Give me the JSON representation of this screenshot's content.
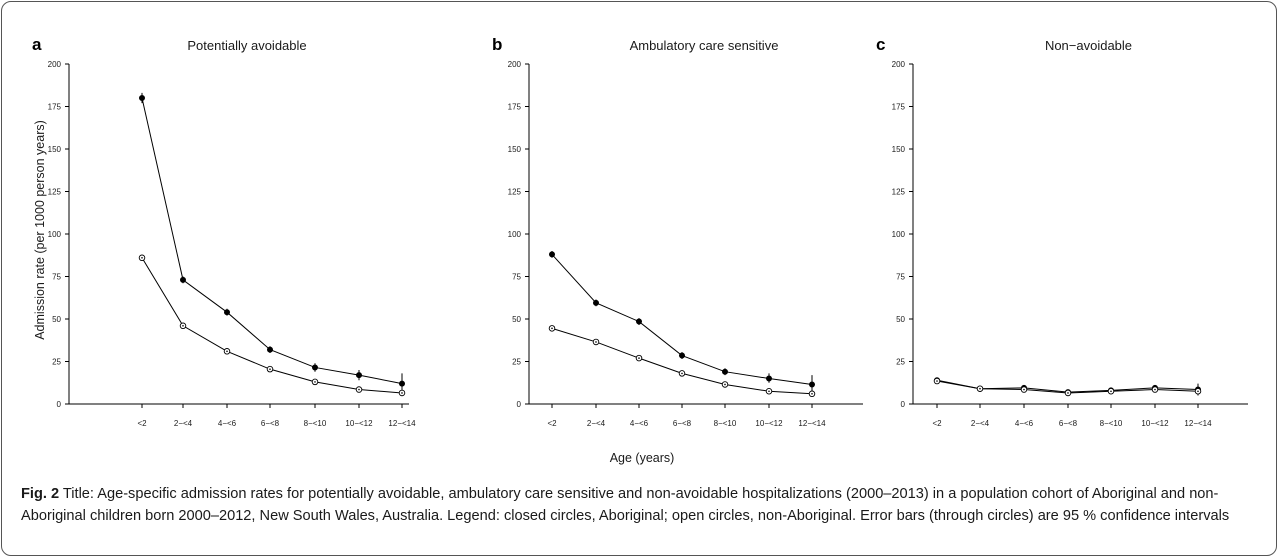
{
  "figure": {
    "xlabel": "Age (years)",
    "ylabel": "Admission rate (per 1000 person years)",
    "caption_lead": "Fig. 2",
    "caption_text": " Title: Age-specific admission rates for potentially avoidable, ambulatory care sensitive and non-avoidable hospitalizations (2000–2013) in a population cohort of Aboriginal and non-Aboriginal children born 2000–2012, New South Wales, Australia. Legend: closed circles, Aboriginal; open circles, non-Aboriginal. Error bars (through circles) are 95 % confidence intervals"
  },
  "chart_data": [
    {
      "type": "line",
      "panel": "a",
      "title": "Potentially avoidable",
      "categories": [
        "<2",
        "2−<4",
        "4−<6",
        "6−<8",
        "8−<10",
        "10−<12",
        "12−<14"
      ],
      "ylim": [
        0,
        200
      ],
      "yticks": [
        0,
        25,
        50,
        75,
        100,
        125,
        150,
        175,
        200
      ],
      "series": [
        {
          "marker": "closed",
          "values": [
            180,
            73,
            54,
            32,
            21.5,
            17,
            12
          ],
          "ci": [
            [
              177,
              183
            ],
            [
              71,
              75
            ],
            [
              52,
              56
            ],
            [
              30,
              34
            ],
            [
              19,
              24
            ],
            [
              14,
              20
            ],
            [
              7,
              18
            ]
          ]
        },
        {
          "marker": "open",
          "values": [
            86,
            46,
            31,
            20.5,
            13,
            8.5,
            6.5
          ],
          "ci": [
            [
              85,
              87
            ],
            [
              45,
              47
            ],
            [
              30,
              32
            ],
            [
              19.5,
              21.5
            ],
            [
              12,
              14
            ],
            [
              7.5,
              9.5
            ],
            [
              5.5,
              7.5
            ]
          ]
        }
      ]
    },
    {
      "type": "line",
      "panel": "b",
      "title": "Ambulatory care sensitive",
      "categories": [
        "<2",
        "2−<4",
        "4−<6",
        "6−<8",
        "8−<10",
        "10−<12",
        "12−<14"
      ],
      "ylim": [
        0,
        200
      ],
      "yticks": [
        0,
        25,
        50,
        75,
        100,
        125,
        150,
        175,
        200
      ],
      "series": [
        {
          "marker": "closed",
          "values": [
            88,
            59.5,
            48.5,
            28.5,
            19,
            15,
            11.5
          ],
          "ci": [
            [
              86,
              90
            ],
            [
              57.5,
              61.5
            ],
            [
              46.5,
              50.5
            ],
            [
              26.5,
              30.5
            ],
            [
              17,
              21
            ],
            [
              12.5,
              18
            ],
            [
              6.5,
              17
            ]
          ]
        },
        {
          "marker": "open",
          "values": [
            44.5,
            36.5,
            27,
            18,
            11.5,
            7.5,
            6
          ],
          "ci": [
            [
              43.5,
              45.5
            ],
            [
              35.5,
              37.5
            ],
            [
              26,
              28
            ],
            [
              17,
              19
            ],
            [
              10.5,
              12.5
            ],
            [
              6.5,
              8.5
            ],
            [
              5,
              7
            ]
          ]
        }
      ]
    },
    {
      "type": "line",
      "panel": "c",
      "title": "Non−avoidable",
      "categories": [
        "<2",
        "2−<4",
        "4−<6",
        "6−<8",
        "8−<10",
        "10−<12",
        "12−<14"
      ],
      "ylim": [
        0,
        200
      ],
      "yticks": [
        0,
        25,
        50,
        75,
        100,
        125,
        150,
        175,
        200
      ],
      "series": [
        {
          "marker": "closed",
          "values": [
            14,
            9,
            9.5,
            7,
            8,
            9.5,
            8.5
          ],
          "ci": [
            [
              13,
              15
            ],
            [
              8,
              10
            ],
            [
              8.5,
              10.5
            ],
            [
              6,
              8
            ],
            [
              7,
              9
            ],
            [
              8,
              11
            ],
            [
              5,
              12
            ]
          ]
        },
        {
          "marker": "open",
          "values": [
            13.5,
            9,
            8.5,
            6.5,
            7.5,
            8.5,
            7.5
          ],
          "ci": [
            [
              12.5,
              14.5
            ],
            [
              8,
              10
            ],
            [
              7.5,
              9.5
            ],
            [
              5.5,
              7.5
            ],
            [
              6.5,
              8.5
            ],
            [
              7.5,
              9.5
            ],
            [
              6.5,
              8.5
            ]
          ]
        }
      ]
    }
  ]
}
